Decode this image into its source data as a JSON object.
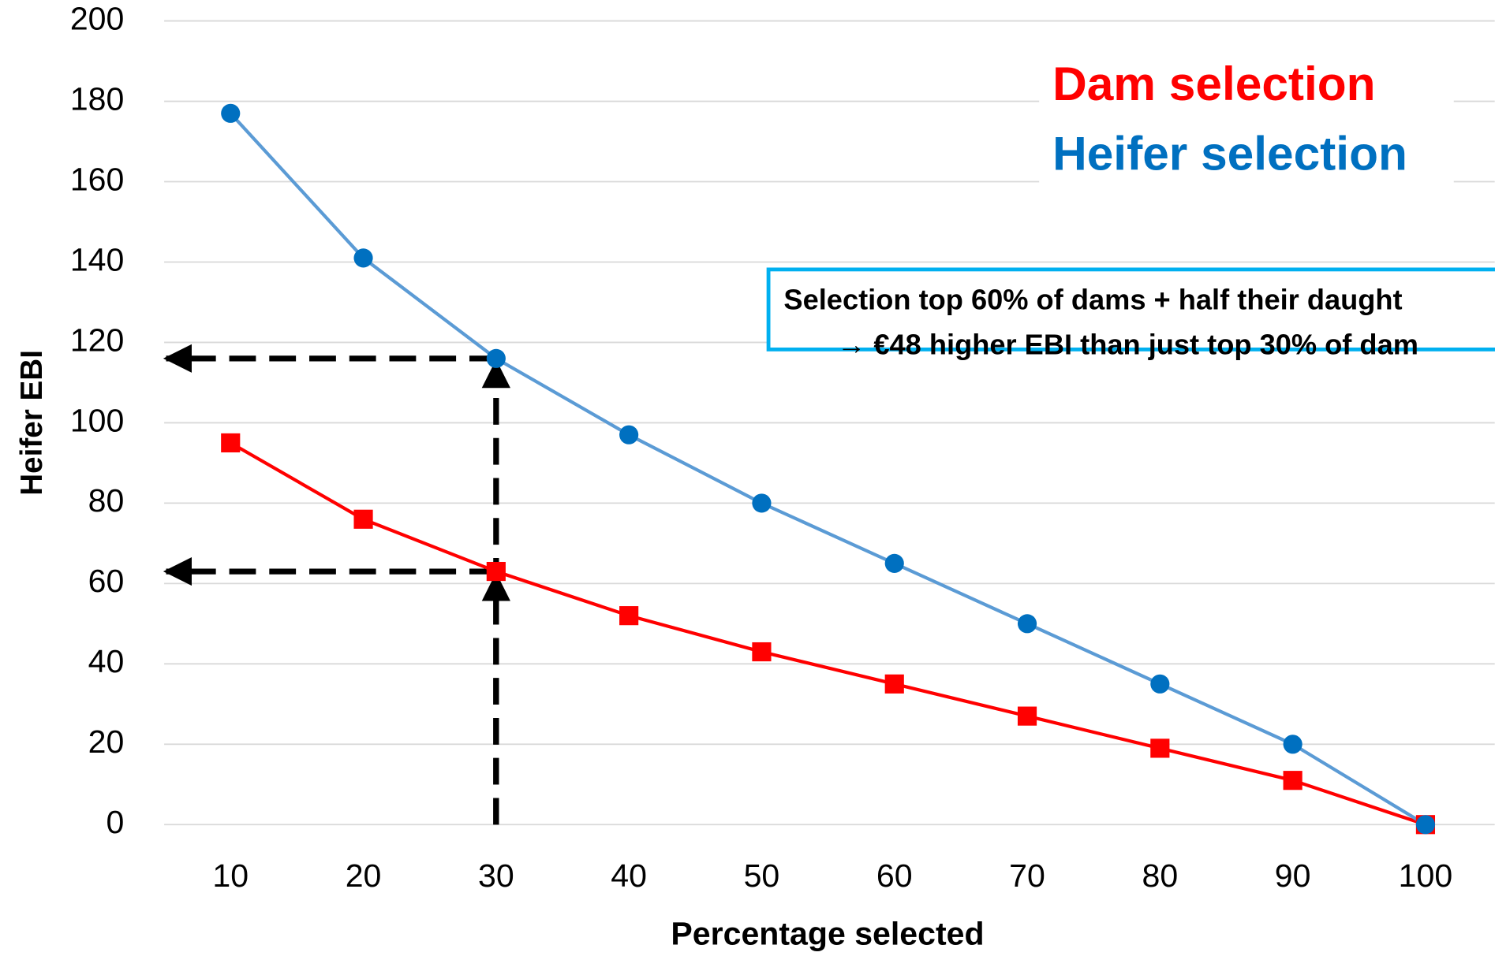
{
  "chart_data": {
    "type": "line",
    "x_label": "Percentage selected",
    "y_label": "Heifer EBI",
    "x": [
      10,
      20,
      30,
      40,
      50,
      60,
      70,
      80,
      90,
      100
    ],
    "xlim": [
      5,
      105
    ],
    "xticks": [
      10,
      20,
      30,
      40,
      50,
      60,
      70,
      80,
      90,
      100
    ],
    "ylim": [
      0,
      200
    ],
    "yticks": [
      0,
      20,
      40,
      60,
      80,
      100,
      120,
      140,
      160,
      180,
      200
    ],
    "grid": true,
    "legend": "upper right",
    "series": [
      {
        "name": "Dam selection",
        "color": "#ff0000",
        "line_color": "#ff0000",
        "marker": "square",
        "values": [
          95,
          76,
          63,
          52,
          43,
          35,
          27,
          19,
          11,
          0
        ]
      },
      {
        "name": "Heifer selection",
        "color": "#0070c0",
        "line_color": "#5b9bd5",
        "marker": "circle",
        "values": [
          177,
          141,
          116,
          97,
          80,
          65,
          50,
          35,
          20,
          0
        ]
      }
    ],
    "annotation": {
      "lines": [
        "Selection top 60% of dams + half their daught",
        "→ €48 higher EBI than just top 30% of dam"
      ],
      "border_color": "#00b0f0"
    }
  }
}
